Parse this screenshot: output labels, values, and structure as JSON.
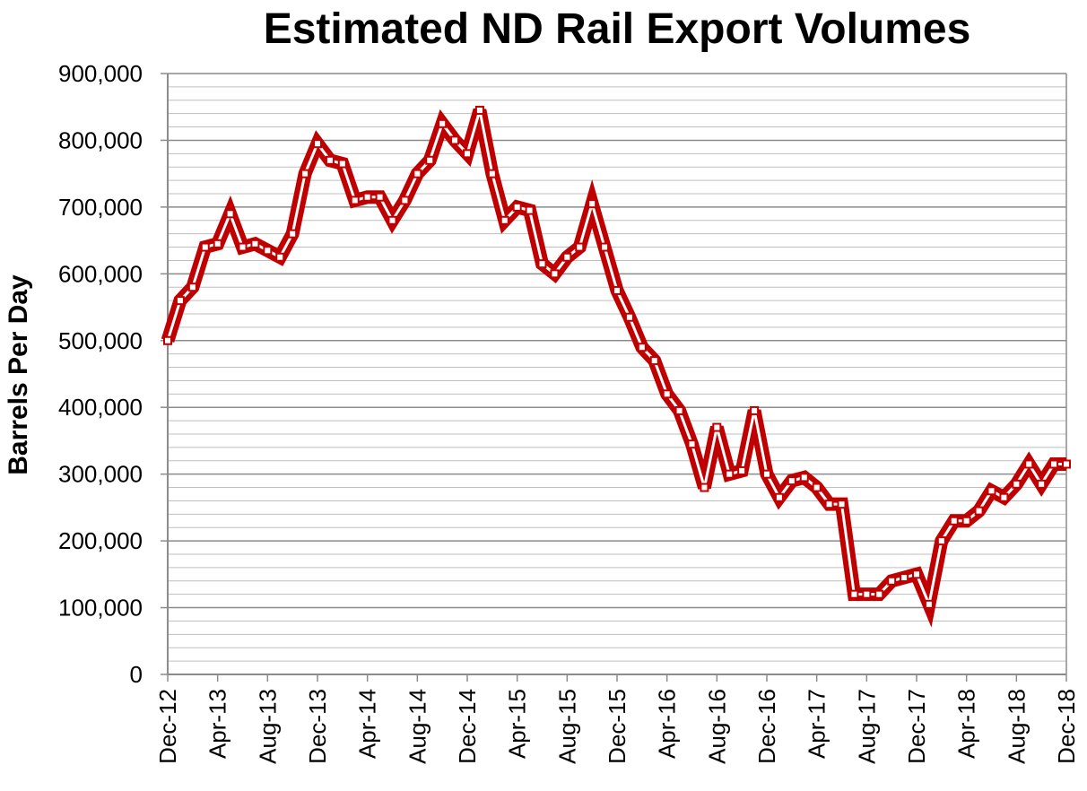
{
  "chart_data": {
    "type": "line",
    "title": "Estimated ND Rail Export Volumes",
    "xlabel": "",
    "ylabel": "Barrels Per Day",
    "ylim": [
      0,
      900000
    ],
    "y_ticks": [
      0,
      100000,
      200000,
      300000,
      400000,
      500000,
      600000,
      700000,
      800000,
      900000
    ],
    "y_tick_labels": [
      "0",
      "100,000",
      "200,000",
      "300,000",
      "400,000",
      "500,000",
      "600,000",
      "700,000",
      "800,000",
      "900,000"
    ],
    "minor_gridline_step": 20000,
    "grid": true,
    "legend": "none",
    "x_tick_labels": [
      "Dec-12",
      "Apr-13",
      "Aug-13",
      "Dec-13",
      "Apr-14",
      "Aug-14",
      "Dec-14",
      "Apr-15",
      "Aug-15",
      "Dec-15",
      "Apr-16",
      "Aug-16",
      "Dec-16",
      "Apr-17",
      "Aug-17",
      "Dec-17",
      "Apr-18",
      "Aug-18",
      "Dec-18"
    ],
    "x_tick_every": 4,
    "line_color": "#c00000",
    "series": [
      {
        "name": "Estimated ND Rail Export Volumes",
        "values": [
          500000,
          560000,
          580000,
          640000,
          645000,
          690000,
          640000,
          645000,
          635000,
          625000,
          660000,
          750000,
          795000,
          770000,
          765000,
          710000,
          715000,
          715000,
          680000,
          710000,
          750000,
          770000,
          825000,
          800000,
          780000,
          845000,
          750000,
          680000,
          700000,
          695000,
          615000,
          600000,
          625000,
          640000,
          705000,
          640000,
          575000,
          535000,
          490000,
          470000,
          420000,
          395000,
          345000,
          280000,
          370000,
          300000,
          305000,
          395000,
          300000,
          265000,
          290000,
          295000,
          280000,
          255000,
          255000,
          120000,
          120000,
          120000,
          140000,
          145000,
          150000,
          105000,
          200000,
          230000,
          230000,
          245000,
          275000,
          265000,
          285000,
          315000,
          285000,
          315000,
          315000
        ]
      }
    ]
  }
}
